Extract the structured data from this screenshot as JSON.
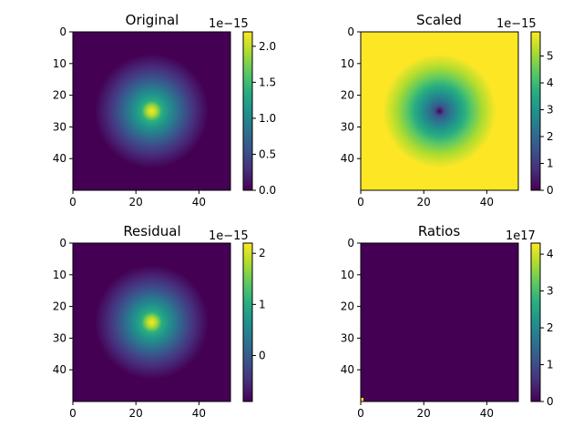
{
  "chart_data": [
    {
      "type": "heatmap",
      "title": "Original",
      "field": "gaussian",
      "xlim": [
        0,
        50
      ],
      "ylim": [
        0,
        50
      ],
      "y_inverted": true,
      "x_ticks": [
        "0",
        "20",
        "40"
      ],
      "y_ticks": [
        "0",
        "10",
        "20",
        "30",
        "40"
      ],
      "colorbar": {
        "min": 0,
        "max": 2.2e-15,
        "ticks": [
          "0.0",
          "0.5",
          "1.0",
          "1.5",
          "2.0"
        ],
        "offset_label": "1e−15"
      },
      "colormap": "viridis"
    },
    {
      "type": "heatmap",
      "title": "Scaled",
      "field": "inverted_gaussian",
      "xlim": [
        0,
        50
      ],
      "ylim": [
        0,
        50
      ],
      "y_inverted": true,
      "x_ticks": [
        "0",
        "20",
        "40"
      ],
      "y_ticks": [
        "0",
        "10",
        "20",
        "30",
        "40"
      ],
      "colorbar": {
        "min": 0,
        "max": 5.9e-15,
        "ticks": [
          "0",
          "1",
          "2",
          "3",
          "4",
          "5"
        ],
        "offset_label": "1e−15"
      },
      "colormap": "viridis"
    },
    {
      "type": "heatmap",
      "title": "Residual",
      "field": "gaussian",
      "xlim": [
        0,
        50
      ],
      "ylim": [
        0,
        50
      ],
      "y_inverted": true,
      "x_ticks": [
        "0",
        "20",
        "40"
      ],
      "y_ticks": [
        "0",
        "10",
        "20",
        "30",
        "40"
      ],
      "colorbar": {
        "min": -9e-16,
        "max": 2.2e-15,
        "ticks": [
          "0",
          "1",
          "2"
        ],
        "offset_label": "1e−15"
      },
      "colormap": "viridis"
    },
    {
      "type": "heatmap",
      "title": "Ratios",
      "field": "uniform_low",
      "xlim": [
        0,
        50
      ],
      "ylim": [
        0,
        50
      ],
      "y_inverted": true,
      "x_ticks": [
        "0",
        "20",
        "40"
      ],
      "y_ticks": [
        "0",
        "10",
        "20",
        "30",
        "40"
      ],
      "colorbar": {
        "min": 0,
        "max": 4.3e+17,
        "ticks": [
          "0",
          "1",
          "2",
          "3",
          "4"
        ],
        "offset_label": "1e17"
      },
      "colormap": "viridis"
    }
  ],
  "colors": {
    "viridis_dark": "#440154",
    "viridis_mid": "#21918c",
    "viridis_bright": "#fde725"
  }
}
